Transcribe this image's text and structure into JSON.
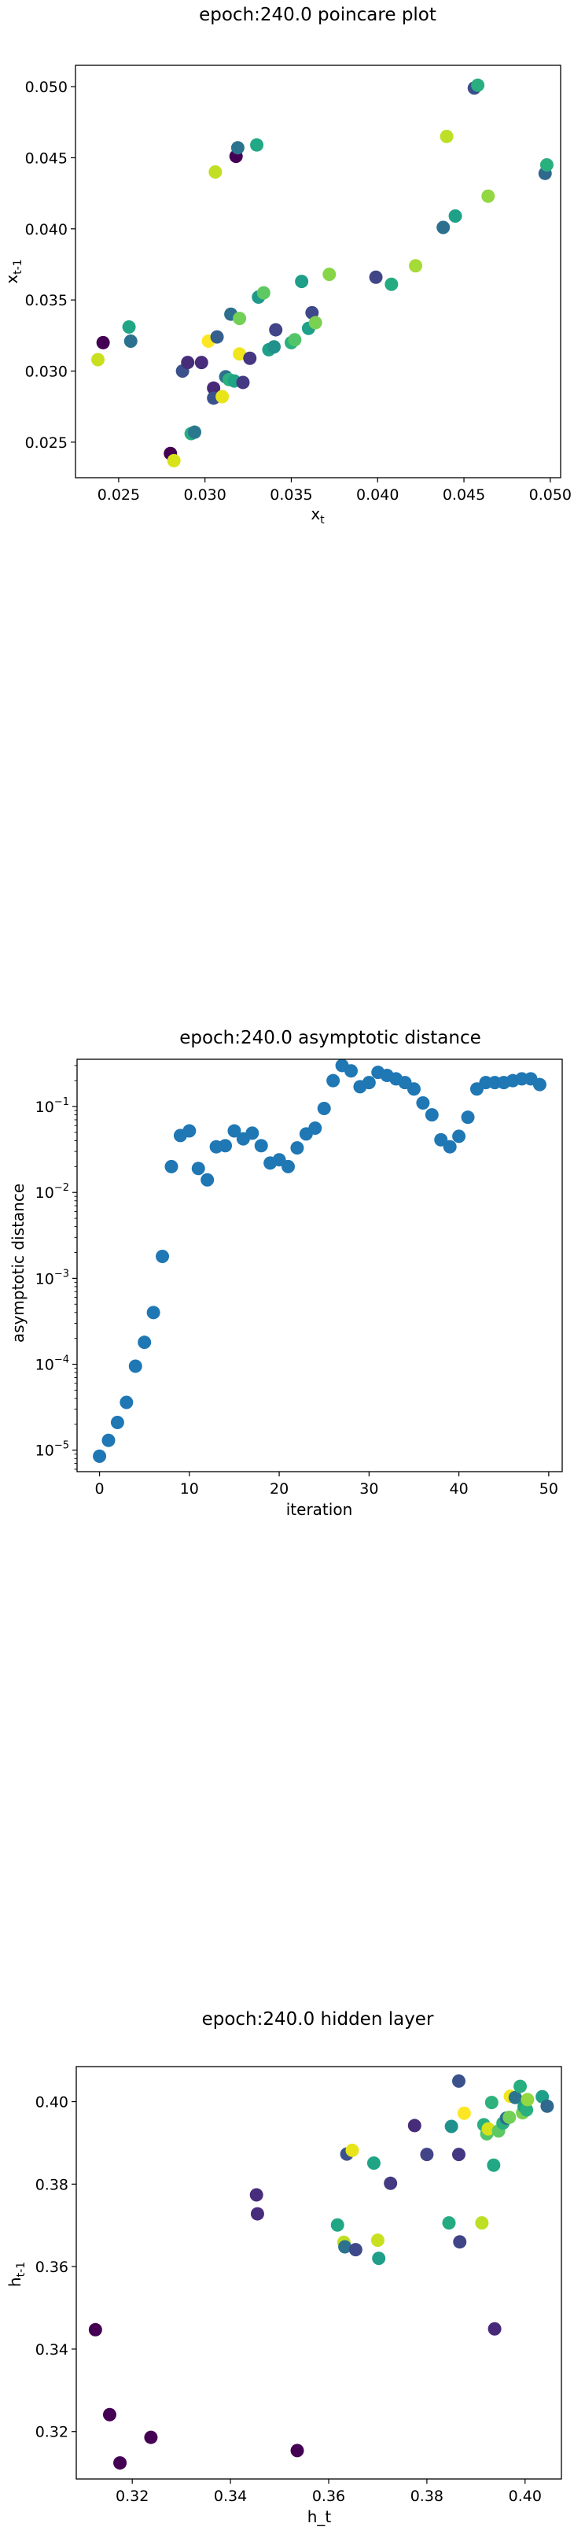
{
  "chart_data": [
    {
      "type": "scatter",
      "title": "epoch:240.0 poincare plot",
      "xlabel": "x",
      "xlabel_sub": "t",
      "ylabel": "x",
      "ylabel_sub": "t-1",
      "xlim": [
        0.0225,
        0.0506
      ],
      "ylim": [
        0.0225,
        0.0515
      ],
      "xticks": [
        0.025,
        0.03,
        0.035,
        0.04,
        0.045,
        0.05
      ],
      "yticks": [
        0.025,
        0.03,
        0.035,
        0.04,
        0.045,
        0.05
      ],
      "xtick_labels": [
        "0.025",
        "0.030",
        "0.035",
        "0.040",
        "0.045",
        "0.050"
      ],
      "ytick_labels": [
        "0.025",
        "0.030",
        "0.035",
        "0.040",
        "0.045",
        "0.050"
      ],
      "points": [
        {
          "x": 0.0238,
          "y": 0.0308,
          "c": "#c8e020"
        },
        {
          "x": 0.0241,
          "y": 0.032,
          "c": "#440154"
        },
        {
          "x": 0.0256,
          "y": 0.0331,
          "c": "#21a685"
        },
        {
          "x": 0.0257,
          "y": 0.0321,
          "c": "#2c728e"
        },
        {
          "x": 0.028,
          "y": 0.0242,
          "c": "#440154"
        },
        {
          "x": 0.0282,
          "y": 0.0237,
          "c": "#d8e219"
        },
        {
          "x": 0.0287,
          "y": 0.03,
          "c": "#3b518b"
        },
        {
          "x": 0.029,
          "y": 0.0306,
          "c": "#472c7a"
        },
        {
          "x": 0.0292,
          "y": 0.0256,
          "c": "#28ae80"
        },
        {
          "x": 0.0294,
          "y": 0.0257,
          "c": "#2a788e"
        },
        {
          "x": 0.0298,
          "y": 0.0306,
          "c": "#472d7b"
        },
        {
          "x": 0.0302,
          "y": 0.0321,
          "c": "#fde725"
        },
        {
          "x": 0.0305,
          "y": 0.0288,
          "c": "#482878"
        },
        {
          "x": 0.0305,
          "y": 0.0281,
          "c": "#3b528b"
        },
        {
          "x": 0.0306,
          "y": 0.044,
          "c": "#c2df23"
        },
        {
          "x": 0.0307,
          "y": 0.0324,
          "c": "#355f8d"
        },
        {
          "x": 0.031,
          "y": 0.0282,
          "c": "#e7e419"
        },
        {
          "x": 0.0312,
          "y": 0.0296,
          "c": "#2c728e"
        },
        {
          "x": 0.0314,
          "y": 0.0294,
          "c": "#2db27d"
        },
        {
          "x": 0.0315,
          "y": 0.034,
          "c": "#2e6e8e"
        },
        {
          "x": 0.0317,
          "y": 0.0293,
          "c": "#20a486"
        },
        {
          "x": 0.0318,
          "y": 0.0451,
          "c": "#440154"
        },
        {
          "x": 0.0319,
          "y": 0.0457,
          "c": "#2c738e"
        },
        {
          "x": 0.032,
          "y": 0.0312,
          "c": "#f1e51d"
        },
        {
          "x": 0.032,
          "y": 0.0337,
          "c": "#73d056"
        },
        {
          "x": 0.0322,
          "y": 0.0292,
          "c": "#443a83"
        },
        {
          "x": 0.0326,
          "y": 0.0309,
          "c": "#453781"
        },
        {
          "x": 0.033,
          "y": 0.0459,
          "c": "#22a884"
        },
        {
          "x": 0.0331,
          "y": 0.0352,
          "c": "#1f998a"
        },
        {
          "x": 0.0334,
          "y": 0.0355,
          "c": "#5ec962"
        },
        {
          "x": 0.0337,
          "y": 0.0315,
          "c": "#1fa188"
        },
        {
          "x": 0.034,
          "y": 0.0317,
          "c": "#21918c"
        },
        {
          "x": 0.0341,
          "y": 0.0329,
          "c": "#414487"
        },
        {
          "x": 0.035,
          "y": 0.032,
          "c": "#2ab07f"
        },
        {
          "x": 0.0352,
          "y": 0.0322,
          "c": "#52c569"
        },
        {
          "x": 0.0356,
          "y": 0.0363,
          "c": "#1f9e89"
        },
        {
          "x": 0.036,
          "y": 0.033,
          "c": "#1fa088"
        },
        {
          "x": 0.0362,
          "y": 0.0341,
          "c": "#3e4989"
        },
        {
          "x": 0.0364,
          "y": 0.0334,
          "c": "#7ad151"
        },
        {
          "x": 0.0372,
          "y": 0.0368,
          "c": "#86d549"
        },
        {
          "x": 0.0399,
          "y": 0.0366,
          "c": "#404588"
        },
        {
          "x": 0.0408,
          "y": 0.0361,
          "c": "#25ab82"
        },
        {
          "x": 0.0422,
          "y": 0.0374,
          "c": "#a5db36"
        },
        {
          "x": 0.0438,
          "y": 0.0401,
          "c": "#2d708e"
        },
        {
          "x": 0.044,
          "y": 0.0465,
          "c": "#bddf26"
        },
        {
          "x": 0.0445,
          "y": 0.0409,
          "c": "#1fa187"
        },
        {
          "x": 0.0456,
          "y": 0.0499,
          "c": "#3c4f8a"
        },
        {
          "x": 0.0458,
          "y": 0.0501,
          "c": "#29af7f"
        },
        {
          "x": 0.0464,
          "y": 0.0423,
          "c": "#93d741"
        },
        {
          "x": 0.0497,
          "y": 0.0439,
          "c": "#30688e"
        },
        {
          "x": 0.0498,
          "y": 0.0445,
          "c": "#2ab07f"
        }
      ]
    },
    {
      "type": "scatter",
      "yscale": "log",
      "title": "epoch:240.0 asymptotic distance",
      "xlabel": "iteration",
      "ylabel": "asymptotic distance",
      "xlim": [
        -2.5,
        51.5
      ],
      "ylog_lim": [
        -5.25,
        -0.45
      ],
      "xticks": [
        0,
        10,
        20,
        30,
        40,
        50
      ],
      "xtick_labels": [
        "0",
        "10",
        "20",
        "30",
        "40",
        "50"
      ],
      "yticks_exp": [
        -5,
        -4,
        -3,
        -2,
        -1
      ],
      "ytick_base": "10",
      "ytick_exps": [
        "−5",
        "−4",
        "−3",
        "−2",
        "−1"
      ],
      "color": "#1f77b4",
      "x": [
        0,
        1,
        2,
        3,
        4,
        5,
        6,
        7,
        8,
        9,
        10,
        11,
        12,
        13,
        14,
        15,
        16,
        17,
        18,
        19,
        20,
        21,
        22,
        23,
        24,
        25,
        26,
        27,
        28,
        29,
        30,
        31,
        32,
        33,
        34,
        35,
        36,
        37,
        38,
        39,
        40,
        41,
        42,
        43,
        44,
        45,
        46,
        47,
        48,
        49
      ],
      "y": [
        8.5e-06,
        1.3e-05,
        2.1e-05,
        3.6e-05,
        9.5e-05,
        0.00018,
        0.0004,
        0.0018,
        0.02,
        0.046,
        0.052,
        0.019,
        0.014,
        0.034,
        0.035,
        0.052,
        0.042,
        0.049,
        0.035,
        0.022,
        0.024,
        0.02,
        0.033,
        0.048,
        0.056,
        0.095,
        0.2,
        0.3,
        0.26,
        0.17,
        0.19,
        0.25,
        0.23,
        0.21,
        0.19,
        0.16,
        0.11,
        0.08,
        0.041,
        0.034,
        0.045,
        0.075,
        0.16,
        0.19,
        0.19,
        0.19,
        0.2,
        0.21,
        0.21,
        0.18
      ]
    },
    {
      "type": "scatter",
      "title": "epoch:240.0 hidden layer",
      "xlabel": "h_t",
      "ylabel": "h",
      "ylabel_sub": "t-1",
      "xlim": [
        0.3086,
        0.4074
      ],
      "ylim": [
        0.3085,
        0.4085
      ],
      "xticks": [
        0.32,
        0.34,
        0.36,
        0.38,
        0.4
      ],
      "yticks": [
        0.32,
        0.34,
        0.36,
        0.38,
        0.4
      ],
      "xtick_labels": [
        "0.32",
        "0.34",
        "0.36",
        "0.38",
        "0.40"
      ],
      "ytick_labels": [
        "0.32",
        "0.34",
        "0.36",
        "0.38",
        "0.40"
      ],
      "points": [
        {
          "x": 0.3125,
          "y": 0.3447,
          "c": "#440154"
        },
        {
          "x": 0.3154,
          "y": 0.3241,
          "c": "#440154"
        },
        {
          "x": 0.3175,
          "y": 0.3124,
          "c": "#440154"
        },
        {
          "x": 0.3238,
          "y": 0.3186,
          "c": "#440154"
        },
        {
          "x": 0.3453,
          "y": 0.3774,
          "c": "#472d7b"
        },
        {
          "x": 0.3455,
          "y": 0.3728,
          "c": "#472d7b"
        },
        {
          "x": 0.3536,
          "y": 0.3154,
          "c": "#440154"
        },
        {
          "x": 0.3618,
          "y": 0.3701,
          "c": "#21a685"
        },
        {
          "x": 0.3631,
          "y": 0.3659,
          "c": "#c2df23"
        },
        {
          "x": 0.3633,
          "y": 0.3648,
          "c": "#2c728e"
        },
        {
          "x": 0.3637,
          "y": 0.3873,
          "c": "#3b528b"
        },
        {
          "x": 0.3648,
          "y": 0.3882,
          "c": "#e7e419"
        },
        {
          "x": 0.3655,
          "y": 0.3641,
          "c": "#3e4989"
        },
        {
          "x": 0.3692,
          "y": 0.3851,
          "c": "#20a486"
        },
        {
          "x": 0.37,
          "y": 0.3664,
          "c": "#c8e020"
        },
        {
          "x": 0.3702,
          "y": 0.362,
          "c": "#1f9e89"
        },
        {
          "x": 0.3726,
          "y": 0.3802,
          "c": "#443a83"
        },
        {
          "x": 0.3775,
          "y": 0.3942,
          "c": "#472c7a"
        },
        {
          "x": 0.38,
          "y": 0.3872,
          "c": "#414487"
        },
        {
          "x": 0.3845,
          "y": 0.3706,
          "c": "#25ab82"
        },
        {
          "x": 0.385,
          "y": 0.394,
          "c": "#21918c"
        },
        {
          "x": 0.3865,
          "y": 0.405,
          "c": "#3b518b"
        },
        {
          "x": 0.3865,
          "y": 0.3872,
          "c": "#453781"
        },
        {
          "x": 0.3867,
          "y": 0.366,
          "c": "#404588"
        },
        {
          "x": 0.3876,
          "y": 0.3972,
          "c": "#fde725"
        },
        {
          "x": 0.3912,
          "y": 0.3706,
          "c": "#bddf26"
        },
        {
          "x": 0.3916,
          "y": 0.3944,
          "c": "#28ae80"
        },
        {
          "x": 0.3922,
          "y": 0.3922,
          "c": "#52c569"
        },
        {
          "x": 0.3925,
          "y": 0.3934,
          "c": "#d8e219"
        },
        {
          "x": 0.3932,
          "y": 0.3998,
          "c": "#2db27d"
        },
        {
          "x": 0.3936,
          "y": 0.3846,
          "c": "#22a884"
        },
        {
          "x": 0.3938,
          "y": 0.3449,
          "c": "#482878"
        },
        {
          "x": 0.3946,
          "y": 0.3929,
          "c": "#5ec962"
        },
        {
          "x": 0.3955,
          "y": 0.3948,
          "c": "#2ab07f"
        },
        {
          "x": 0.3962,
          "y": 0.396,
          "c": "#2e6e8e"
        },
        {
          "x": 0.3968,
          "y": 0.3962,
          "c": "#73d056"
        },
        {
          "x": 0.397,
          "y": 0.4013,
          "c": "#f1e51d"
        },
        {
          "x": 0.398,
          "y": 0.401,
          "c": "#2c738e"
        },
        {
          "x": 0.399,
          "y": 0.4037,
          "c": "#29af7f"
        },
        {
          "x": 0.3995,
          "y": 0.3973,
          "c": "#7ad151"
        },
        {
          "x": 0.3998,
          "y": 0.3988,
          "c": "#1fa188"
        },
        {
          "x": 0.4003,
          "y": 0.398,
          "c": "#2ab07f"
        },
        {
          "x": 0.4005,
          "y": 0.4005,
          "c": "#93d741"
        },
        {
          "x": 0.4035,
          "y": 0.4012,
          "c": "#1fa088"
        },
        {
          "x": 0.4045,
          "y": 0.3989,
          "c": "#30688e"
        }
      ]
    }
  ]
}
